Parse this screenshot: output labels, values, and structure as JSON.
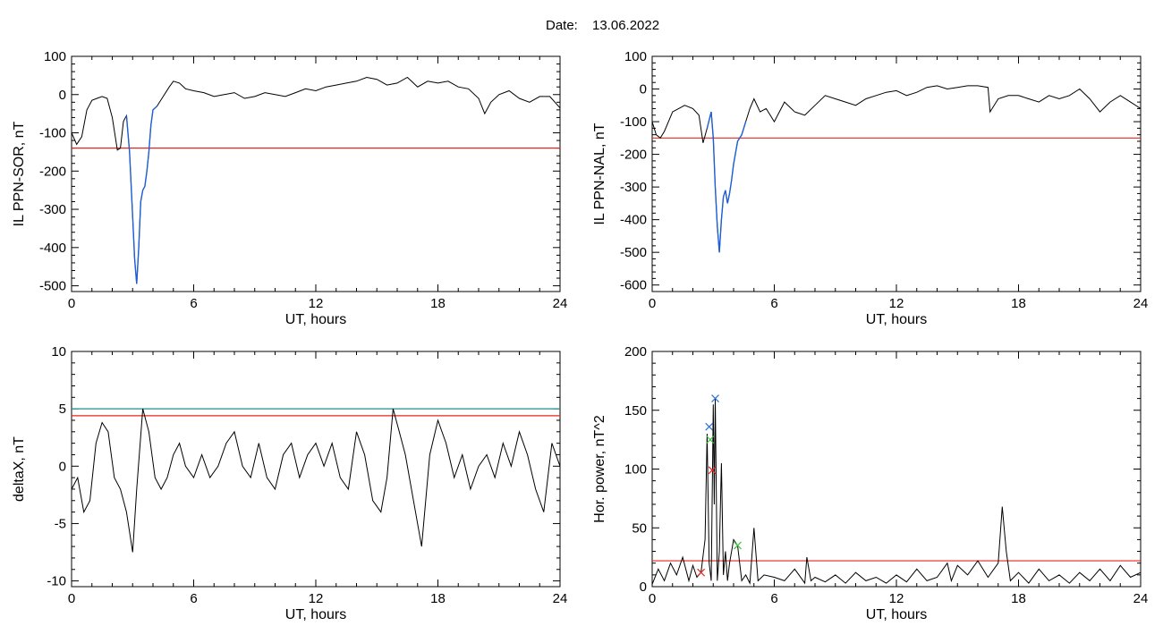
{
  "header": {
    "date_label": "Date:",
    "date_value": "13.06.2022"
  },
  "colors": {
    "trace": "#000000",
    "highlight": "#1f5fd6",
    "threshold_red": "#e8241f",
    "threshold_teal": "#1f8f8f",
    "marker_blue": "#2b6fd8",
    "marker_green": "#3cc43c",
    "marker_red": "#e8241f",
    "marker_pink": "#e8241f"
  },
  "chart_data": [
    {
      "id": "il_sor",
      "type": "line",
      "xlabel": "UT, hours",
      "ylabel": "IL PPN-SOR, nT",
      "xlim": [
        0,
        24
      ],
      "ylim": [
        -515,
        100
      ],
      "xticks": [
        0,
        6,
        12,
        18,
        24
      ],
      "yticks": [
        100,
        0,
        -100,
        -200,
        -300,
        -400,
        -500
      ],
      "threshold": {
        "y": -140,
        "color": "red"
      },
      "highlight_range": [
        2.6,
        4.2
      ],
      "series": [
        {
          "x": [
            0,
            0.25,
            0.5,
            0.75,
            1.0,
            1.25,
            1.5,
            1.75,
            2.0,
            2.25,
            2.4,
            2.55,
            2.7,
            2.85,
            3.0,
            3.1,
            3.2,
            3.3,
            3.4,
            3.5,
            3.6,
            3.7,
            3.8,
            3.9,
            4.0,
            4.2,
            4.5,
            4.8,
            5.0,
            5.3,
            5.6,
            6.0,
            6.5,
            7.0,
            7.5,
            8.0,
            8.5,
            9.0,
            9.5,
            10.0,
            10.5,
            11.0,
            11.5,
            12.0,
            12.5,
            13.0,
            13.5,
            14.0,
            14.5,
            15.0,
            15.5,
            16.0,
            16.5,
            17.0,
            17.5,
            18.0,
            18.5,
            19.0,
            19.5,
            20.0,
            20.3,
            20.6,
            21.0,
            21.5,
            22.0,
            22.5,
            23.0,
            23.5,
            24.0
          ],
          "y": [
            -100,
            -130,
            -110,
            -40,
            -15,
            -10,
            -5,
            -10,
            -60,
            -145,
            -140,
            -70,
            -55,
            -150,
            -320,
            -430,
            -495,
            -400,
            -280,
            -250,
            -240,
            -200,
            -150,
            -80,
            -40,
            -30,
            -5,
            20,
            35,
            30,
            15,
            10,
            5,
            -5,
            0,
            5,
            -10,
            -5,
            5,
            0,
            -5,
            5,
            15,
            10,
            20,
            25,
            30,
            35,
            45,
            40,
            25,
            30,
            45,
            20,
            35,
            30,
            35,
            20,
            15,
            -10,
            -50,
            -20,
            0,
            10,
            -10,
            -20,
            -5,
            -5,
            -35
          ]
        }
      ]
    },
    {
      "id": "il_nal",
      "type": "line",
      "xlabel": "UT, hours",
      "ylabel": "IL PPN-NAL, nT",
      "xlim": [
        0,
        24
      ],
      "ylim": [
        -620,
        100
      ],
      "xticks": [
        0,
        6,
        12,
        18,
        24
      ],
      "yticks": [
        100,
        0,
        -100,
        -200,
        -300,
        -400,
        -500,
        -600
      ],
      "threshold": {
        "y": -150,
        "color": "red"
      },
      "highlight_range": [
        2.6,
        4.6
      ],
      "series": [
        {
          "x": [
            0,
            0.2,
            0.4,
            0.6,
            0.8,
            1.0,
            1.3,
            1.6,
            2.0,
            2.3,
            2.5,
            2.7,
            2.9,
            3.0,
            3.1,
            3.2,
            3.3,
            3.4,
            3.5,
            3.6,
            3.7,
            3.8,
            3.9,
            4.0,
            4.2,
            4.4,
            4.6,
            4.8,
            5.0,
            5.3,
            5.6,
            6.0,
            6.5,
            7.0,
            7.5,
            8.0,
            8.5,
            9.0,
            9.5,
            10.0,
            10.5,
            11.0,
            11.5,
            12.0,
            12.5,
            13.0,
            13.5,
            14.0,
            14.5,
            15.0,
            15.5,
            16.0,
            16.5,
            16.6,
            17.0,
            17.5,
            18.0,
            18.5,
            19.0,
            19.5,
            20.0,
            20.5,
            21.0,
            21.5,
            22.0,
            22.5,
            23.0,
            23.5,
            24.0
          ],
          "y": [
            -100,
            -140,
            -150,
            -130,
            -100,
            -70,
            -60,
            -50,
            -60,
            -80,
            -165,
            -120,
            -70,
            -150,
            -300,
            -420,
            -500,
            -400,
            -330,
            -310,
            -350,
            -320,
            -280,
            -230,
            -160,
            -140,
            -100,
            -60,
            -30,
            -70,
            -60,
            -100,
            -40,
            -70,
            -80,
            -50,
            -20,
            -30,
            -40,
            -50,
            -30,
            -20,
            -10,
            -5,
            -20,
            -10,
            5,
            10,
            0,
            5,
            10,
            10,
            5,
            -70,
            -30,
            -20,
            -20,
            -30,
            -40,
            -20,
            -30,
            -20,
            0,
            -30,
            -70,
            -40,
            -20,
            -40,
            -60
          ]
        }
      ]
    },
    {
      "id": "deltax",
      "type": "line",
      "xlabel": "UT, hours",
      "ylabel": "deltaX, nT",
      "xlim": [
        0,
        24
      ],
      "ylim": [
        -10.5,
        10
      ],
      "xticks": [
        0,
        6,
        12,
        18,
        24
      ],
      "yticks": [
        10,
        5,
        0,
        -5,
        -10
      ],
      "threshold": {
        "y": 4.4,
        "color": "red"
      },
      "threshold2": {
        "y": 5.0,
        "color": "teal"
      },
      "series": [
        {
          "x": [
            0,
            0.3,
            0.6,
            0.9,
            1.2,
            1.5,
            1.8,
            2.1,
            2.4,
            2.7,
            3.0,
            3.2,
            3.5,
            3.8,
            4.1,
            4.4,
            4.7,
            5.0,
            5.3,
            5.6,
            6.0,
            6.4,
            6.8,
            7.2,
            7.6,
            8.0,
            8.4,
            8.8,
            9.2,
            9.6,
            10.0,
            10.4,
            10.8,
            11.2,
            11.6,
            12.0,
            12.4,
            12.8,
            13.2,
            13.6,
            14.0,
            14.4,
            14.8,
            15.2,
            15.5,
            15.8,
            16.1,
            16.4,
            16.8,
            17.2,
            17.6,
            18.0,
            18.4,
            18.8,
            19.2,
            19.6,
            20.0,
            20.4,
            20.8,
            21.2,
            21.6,
            22.0,
            22.4,
            22.8,
            23.2,
            23.6,
            24.0
          ],
          "y": [
            -2,
            -1,
            -4,
            -3,
            2,
            3.8,
            3,
            -1,
            -2,
            -4,
            -7.5,
            -2,
            5,
            3,
            -1,
            -2,
            -1,
            1,
            2,
            0,
            -1,
            1,
            -1,
            0,
            2,
            3,
            0,
            -1,
            2,
            -1,
            -2,
            1,
            2,
            -1,
            1,
            2,
            0,
            2,
            -1,
            -2,
            3,
            1,
            -3,
            -4,
            -1,
            5,
            3,
            1,
            -3,
            -7,
            1,
            4,
            2,
            -1,
            1,
            -2,
            0,
            1,
            -1,
            2,
            0,
            3,
            1,
            -2,
            -4,
            2,
            0
          ]
        }
      ]
    },
    {
      "id": "hor_power",
      "type": "line",
      "xlabel": "UT, hours",
      "ylabel": "Hor. power, nT^2",
      "xlim": [
        0,
        24
      ],
      "ylim": [
        0,
        200
      ],
      "xticks": [
        0,
        6,
        12,
        18,
        24
      ],
      "yticks": [
        200,
        150,
        100,
        50,
        0
      ],
      "threshold": {
        "y": 22,
        "color": "red"
      },
      "markers": [
        {
          "x": 3.1,
          "y": 160,
          "color": "blue"
        },
        {
          "x": 2.8,
          "y": 136,
          "color": "blue"
        },
        {
          "x": 2.85,
          "y": 125,
          "color": "green"
        },
        {
          "x": 2.95,
          "y": 99,
          "color": "red"
        },
        {
          "x": 4.2,
          "y": 35,
          "color": "green"
        },
        {
          "x": 2.4,
          "y": 12,
          "color": "pink"
        }
      ],
      "series": [
        {
          "x": [
            0,
            0.3,
            0.6,
            0.9,
            1.2,
            1.5,
            1.8,
            2.0,
            2.2,
            2.4,
            2.6,
            2.7,
            2.8,
            2.9,
            3.0,
            3.05,
            3.1,
            3.2,
            3.3,
            3.4,
            3.5,
            3.6,
            3.7,
            3.8,
            4.0,
            4.2,
            4.4,
            4.6,
            4.8,
            5.0,
            5.2,
            5.5,
            6.0,
            6.5,
            7.0,
            7.5,
            7.6,
            7.8,
            8.0,
            8.5,
            9.0,
            9.5,
            10.0,
            10.5,
            11.0,
            11.5,
            12.0,
            12.5,
            13.0,
            13.5,
            14.0,
            14.5,
            14.7,
            15.0,
            15.5,
            16.0,
            16.5,
            17.0,
            17.2,
            17.4,
            17.6,
            18.0,
            18.5,
            19.0,
            19.5,
            20.0,
            20.5,
            21.0,
            21.5,
            22.0,
            22.5,
            23.0,
            23.5,
            24.0
          ],
          "y": [
            2,
            15,
            5,
            20,
            10,
            25,
            5,
            18,
            8,
            12,
            40,
            130,
            20,
            5,
            155,
            70,
            160,
            5,
            30,
            105,
            10,
            30,
            5,
            20,
            40,
            35,
            5,
            10,
            3,
            50,
            5,
            10,
            8,
            5,
            15,
            3,
            25,
            5,
            8,
            4,
            10,
            3,
            12,
            5,
            8,
            3,
            10,
            4,
            15,
            5,
            8,
            20,
            5,
            18,
            10,
            22,
            8,
            20,
            68,
            30,
            5,
            12,
            3,
            15,
            5,
            10,
            3,
            12,
            5,
            15,
            5,
            18,
            8,
            12
          ]
        }
      ]
    }
  ]
}
